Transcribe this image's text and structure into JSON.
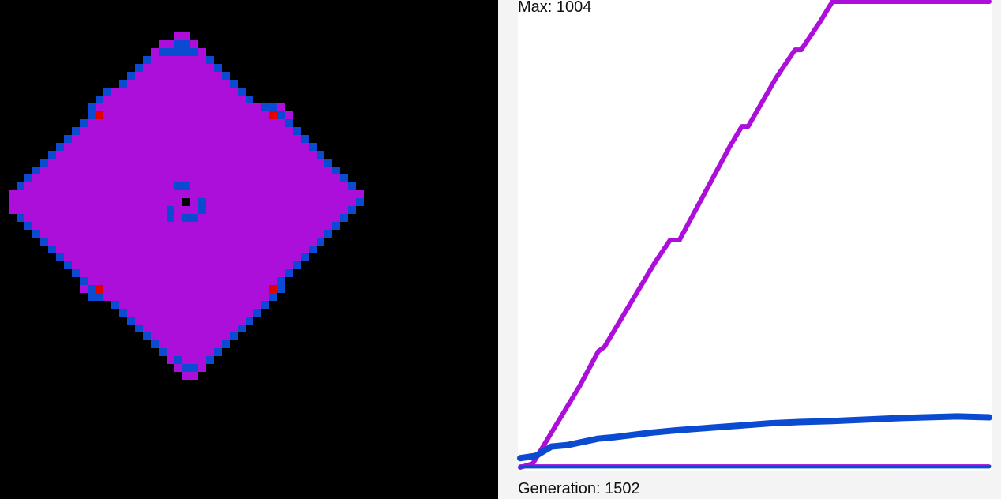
{
  "labels": {
    "max": "Max: 1004",
    "generation": "Generation: 1502"
  },
  "colors": {
    "background": "#000000",
    "graph_background": "#ffffff",
    "graph_margin": "#f4f4f4",
    "state_magenta": "#ad0fdb",
    "state_blue": "#0a4bd1",
    "state_red": "#e50000",
    "text": "#111111"
  },
  "grid": {
    "cell_size": 10,
    "rows": [
      {
        "r": 4,
        "segs": [
          [
            22,
            23,
            "m"
          ]
        ]
      },
      {
        "r": 5,
        "segs": [
          [
            20,
            21,
            "m"
          ],
          [
            22,
            23,
            "b"
          ],
          [
            24,
            24,
            "m"
          ]
        ]
      },
      {
        "r": 6,
        "segs": [
          [
            19,
            19,
            "m"
          ],
          [
            20,
            24,
            "b"
          ],
          [
            25,
            25,
            "m"
          ]
        ]
      },
      {
        "r": 7,
        "segs": [
          [
            18,
            18,
            "b"
          ],
          [
            19,
            25,
            "m"
          ],
          [
            26,
            26,
            "b"
          ]
        ]
      },
      {
        "r": 8,
        "segs": [
          [
            17,
            17,
            "b"
          ],
          [
            18,
            26,
            "m"
          ],
          [
            27,
            27,
            "b"
          ]
        ]
      },
      {
        "r": 9,
        "segs": [
          [
            16,
            16,
            "b"
          ],
          [
            17,
            27,
            "m"
          ],
          [
            28,
            28,
            "b"
          ]
        ]
      },
      {
        "r": 10,
        "segs": [
          [
            15,
            15,
            "b"
          ],
          [
            16,
            28,
            "m"
          ],
          [
            29,
            29,
            "b"
          ]
        ]
      },
      {
        "r": 11,
        "segs": [
          [
            13,
            13,
            "b"
          ],
          [
            14,
            29,
            "m"
          ],
          [
            30,
            30,
            "b"
          ]
        ]
      },
      {
        "r": 12,
        "segs": [
          [
            12,
            12,
            "b"
          ],
          [
            13,
            30,
            "m"
          ],
          [
            31,
            31,
            "b"
          ]
        ]
      },
      {
        "r": 13,
        "segs": [
          [
            11,
            11,
            "b"
          ],
          [
            12,
            32,
            "m"
          ],
          [
            33,
            34,
            "b"
          ],
          [
            35,
            35,
            "m"
          ]
        ]
      },
      {
        "r": 14,
        "segs": [
          [
            11,
            11,
            "b"
          ],
          [
            12,
            12,
            "r"
          ],
          [
            13,
            33,
            "m"
          ],
          [
            34,
            34,
            "r"
          ],
          [
            35,
            35,
            "b"
          ],
          [
            36,
            36,
            "m"
          ]
        ]
      },
      {
        "r": 15,
        "segs": [
          [
            10,
            10,
            "b"
          ],
          [
            11,
            35,
            "m"
          ],
          [
            36,
            36,
            "b"
          ]
        ]
      },
      {
        "r": 16,
        "segs": [
          [
            9,
            9,
            "b"
          ],
          [
            10,
            36,
            "m"
          ],
          [
            37,
            37,
            "b"
          ]
        ]
      },
      {
        "r": 17,
        "segs": [
          [
            8,
            8,
            "b"
          ],
          [
            9,
            37,
            "m"
          ],
          [
            38,
            38,
            "b"
          ]
        ]
      },
      {
        "r": 18,
        "segs": [
          [
            7,
            7,
            "b"
          ],
          [
            8,
            38,
            "m"
          ],
          [
            39,
            39,
            "b"
          ]
        ]
      },
      {
        "r": 19,
        "segs": [
          [
            6,
            6,
            "b"
          ],
          [
            7,
            39,
            "m"
          ],
          [
            40,
            40,
            "b"
          ]
        ]
      },
      {
        "r": 20,
        "segs": [
          [
            5,
            5,
            "b"
          ],
          [
            6,
            40,
            "m"
          ],
          [
            41,
            41,
            "b"
          ]
        ]
      },
      {
        "r": 21,
        "segs": [
          [
            4,
            4,
            "b"
          ],
          [
            5,
            41,
            "m"
          ],
          [
            42,
            42,
            "b"
          ]
        ]
      },
      {
        "r": 22,
        "segs": [
          [
            3,
            3,
            "b"
          ],
          [
            4,
            42,
            "m"
          ],
          [
            43,
            43,
            "b"
          ]
        ]
      },
      {
        "r": 23,
        "segs": [
          [
            2,
            2,
            "b"
          ],
          [
            3,
            43,
            "m"
          ],
          [
            44,
            44,
            "b"
          ]
        ]
      },
      {
        "r": 24,
        "segs": [
          [
            1,
            1,
            "m"
          ],
          [
            2,
            44,
            "m"
          ],
          [
            45,
            45,
            "m"
          ]
        ]
      },
      {
        "r": 25,
        "segs": [
          [
            1,
            1,
            "m"
          ],
          [
            2,
            44,
            "m"
          ],
          [
            45,
            45,
            "b"
          ]
        ]
      },
      {
        "r": 26,
        "segs": [
          [
            1,
            1,
            "m"
          ],
          [
            2,
            43,
            "m"
          ],
          [
            44,
            44,
            "b"
          ]
        ]
      },
      {
        "r": 27,
        "segs": [
          [
            2,
            2,
            "b"
          ],
          [
            3,
            42,
            "m"
          ],
          [
            43,
            43,
            "b"
          ]
        ]
      },
      {
        "r": 28,
        "segs": [
          [
            3,
            3,
            "b"
          ],
          [
            4,
            41,
            "m"
          ],
          [
            42,
            42,
            "b"
          ]
        ]
      },
      {
        "r": 29,
        "segs": [
          [
            4,
            4,
            "b"
          ],
          [
            5,
            40,
            "m"
          ],
          [
            41,
            41,
            "b"
          ]
        ]
      },
      {
        "r": 30,
        "segs": [
          [
            5,
            5,
            "b"
          ],
          [
            6,
            39,
            "m"
          ],
          [
            40,
            40,
            "b"
          ]
        ]
      },
      {
        "r": 31,
        "segs": [
          [
            6,
            6,
            "b"
          ],
          [
            7,
            38,
            "m"
          ],
          [
            39,
            39,
            "b"
          ]
        ]
      },
      {
        "r": 32,
        "segs": [
          [
            7,
            7,
            "b"
          ],
          [
            8,
            37,
            "m"
          ],
          [
            38,
            38,
            "b"
          ]
        ]
      },
      {
        "r": 33,
        "segs": [
          [
            8,
            8,
            "b"
          ],
          [
            9,
            36,
            "m"
          ],
          [
            37,
            37,
            "b"
          ]
        ]
      },
      {
        "r": 34,
        "segs": [
          [
            9,
            9,
            "b"
          ],
          [
            10,
            35,
            "m"
          ],
          [
            36,
            36,
            "b"
          ]
        ]
      },
      {
        "r": 35,
        "segs": [
          [
            10,
            10,
            "b"
          ],
          [
            11,
            34,
            "m"
          ],
          [
            35,
            35,
            "b"
          ]
        ]
      },
      {
        "r": 36,
        "segs": [
          [
            10,
            10,
            "m"
          ],
          [
            11,
            11,
            "b"
          ],
          [
            12,
            12,
            "r"
          ],
          [
            13,
            33,
            "m"
          ],
          [
            34,
            34,
            "r"
          ],
          [
            35,
            35,
            "b"
          ]
        ]
      },
      {
        "r": 37,
        "segs": [
          [
            11,
            11,
            "b"
          ],
          [
            12,
            12,
            "b"
          ],
          [
            13,
            13,
            "m"
          ],
          [
            14,
            33,
            "m"
          ],
          [
            34,
            34,
            "b"
          ]
        ]
      },
      {
        "r": 38,
        "segs": [
          [
            14,
            14,
            "b"
          ],
          [
            15,
            32,
            "m"
          ],
          [
            33,
            33,
            "b"
          ]
        ]
      },
      {
        "r": 39,
        "segs": [
          [
            15,
            15,
            "b"
          ],
          [
            16,
            31,
            "m"
          ],
          [
            32,
            32,
            "b"
          ]
        ]
      },
      {
        "r": 40,
        "segs": [
          [
            16,
            16,
            "b"
          ],
          [
            17,
            30,
            "m"
          ],
          [
            31,
            31,
            "b"
          ]
        ]
      },
      {
        "r": 41,
        "segs": [
          [
            17,
            17,
            "b"
          ],
          [
            18,
            29,
            "m"
          ],
          [
            30,
            30,
            "b"
          ]
        ]
      },
      {
        "r": 42,
        "segs": [
          [
            18,
            18,
            "b"
          ],
          [
            19,
            28,
            "m"
          ],
          [
            29,
            29,
            "b"
          ]
        ]
      },
      {
        "r": 43,
        "segs": [
          [
            19,
            19,
            "b"
          ],
          [
            20,
            27,
            "m"
          ],
          [
            28,
            28,
            "b"
          ]
        ]
      },
      {
        "r": 44,
        "segs": [
          [
            20,
            20,
            "b"
          ],
          [
            21,
            26,
            "m"
          ],
          [
            27,
            27,
            "b"
          ]
        ]
      },
      {
        "r": 45,
        "segs": [
          [
            21,
            21,
            "m"
          ],
          [
            22,
            22,
            "b"
          ],
          [
            23,
            25,
            "m"
          ],
          [
            26,
            26,
            "b"
          ]
        ]
      },
      {
        "r": 46,
        "segs": [
          [
            22,
            22,
            "m"
          ],
          [
            23,
            24,
            "b"
          ],
          [
            25,
            25,
            "m"
          ]
        ]
      },
      {
        "r": 47,
        "segs": [
          [
            23,
            24,
            "m"
          ]
        ]
      }
    ],
    "center_overrides": [
      {
        "r": 23,
        "c": 22,
        "s": "b"
      },
      {
        "r": 23,
        "c": 23,
        "s": "b"
      },
      {
        "r": 24,
        "c": 21,
        "s": "m"
      },
      {
        "r": 24,
        "c": 22,
        "s": "m"
      },
      {
        "r": 24,
        "c": 23,
        "s": "m"
      },
      {
        "r": 24,
        "c": 24,
        "s": "m"
      },
      {
        "r": 25,
        "c": 25,
        "s": "b"
      },
      {
        "r": 26,
        "c": 25,
        "s": "b"
      },
      {
        "r": 25,
        "c": 23,
        "s": "k"
      },
      {
        "r": 26,
        "c": 21,
        "s": "b"
      },
      {
        "r": 27,
        "c": 21,
        "s": "b"
      },
      {
        "r": 27,
        "c": 23,
        "s": "b"
      },
      {
        "r": 27,
        "c": 24,
        "s": "b"
      }
    ]
  },
  "graph": {
    "y_max": 1004,
    "generations": 1502,
    "series": [
      {
        "key": "magenta",
        "color": "#ad0fdb",
        "points": [
          [
            0,
            0
          ],
          [
            40,
            8
          ],
          [
            100,
            75
          ],
          [
            190,
            175
          ],
          [
            270,
            275
          ],
          [
            330,
            275
          ],
          [
            350,
            290
          ],
          [
            420,
            390
          ],
          [
            510,
            490
          ],
          [
            560,
            490
          ],
          [
            580,
            510
          ],
          [
            650,
            600
          ],
          [
            700,
            690
          ],
          [
            740,
            690
          ],
          [
            760,
            715
          ],
          [
            820,
            780
          ],
          [
            900,
            880
          ],
          [
            950,
            880
          ],
          [
            960,
            900
          ],
          [
            1060,
            1004
          ],
          [
            1100,
            1004
          ],
          [
            1165,
            1000
          ],
          [
            1240,
            1000
          ],
          [
            1300,
            1004
          ],
          [
            1502,
            1004
          ]
        ],
        "drawn_points": [
          [
            0,
            0
          ],
          [
            40,
            8
          ],
          [
            100,
            75
          ],
          [
            190,
            175
          ],
          [
            250,
            250
          ],
          [
            270,
            260
          ],
          [
            350,
            350
          ],
          [
            430,
            440
          ],
          [
            480,
            490
          ],
          [
            510,
            490
          ],
          [
            590,
            590
          ],
          [
            670,
            690
          ],
          [
            710,
            735
          ],
          [
            730,
            735
          ],
          [
            820,
            840
          ],
          [
            880,
            900
          ],
          [
            900,
            900
          ],
          [
            960,
            960
          ],
          [
            1000,
            1004
          ],
          [
            1502,
            1004
          ]
        ]
      },
      {
        "key": "blue",
        "color": "#0a4bd1",
        "points": [
          [
            0,
            20
          ],
          [
            50,
            25
          ],
          [
            100,
            45
          ],
          [
            150,
            48
          ],
          [
            200,
            55
          ],
          [
            250,
            62
          ],
          [
            300,
            65
          ],
          [
            360,
            70
          ],
          [
            420,
            75
          ],
          [
            500,
            80
          ],
          [
            600,
            85
          ],
          [
            700,
            90
          ],
          [
            800,
            95
          ],
          [
            900,
            98
          ],
          [
            1000,
            100
          ],
          [
            1100,
            103
          ],
          [
            1200,
            106
          ],
          [
            1300,
            108
          ],
          [
            1400,
            110
          ],
          [
            1502,
            108
          ]
        ]
      },
      {
        "key": "blue-baseline",
        "color": "#0a4bd1",
        "points": [
          [
            0,
            2
          ],
          [
            1502,
            2
          ]
        ]
      }
    ]
  }
}
